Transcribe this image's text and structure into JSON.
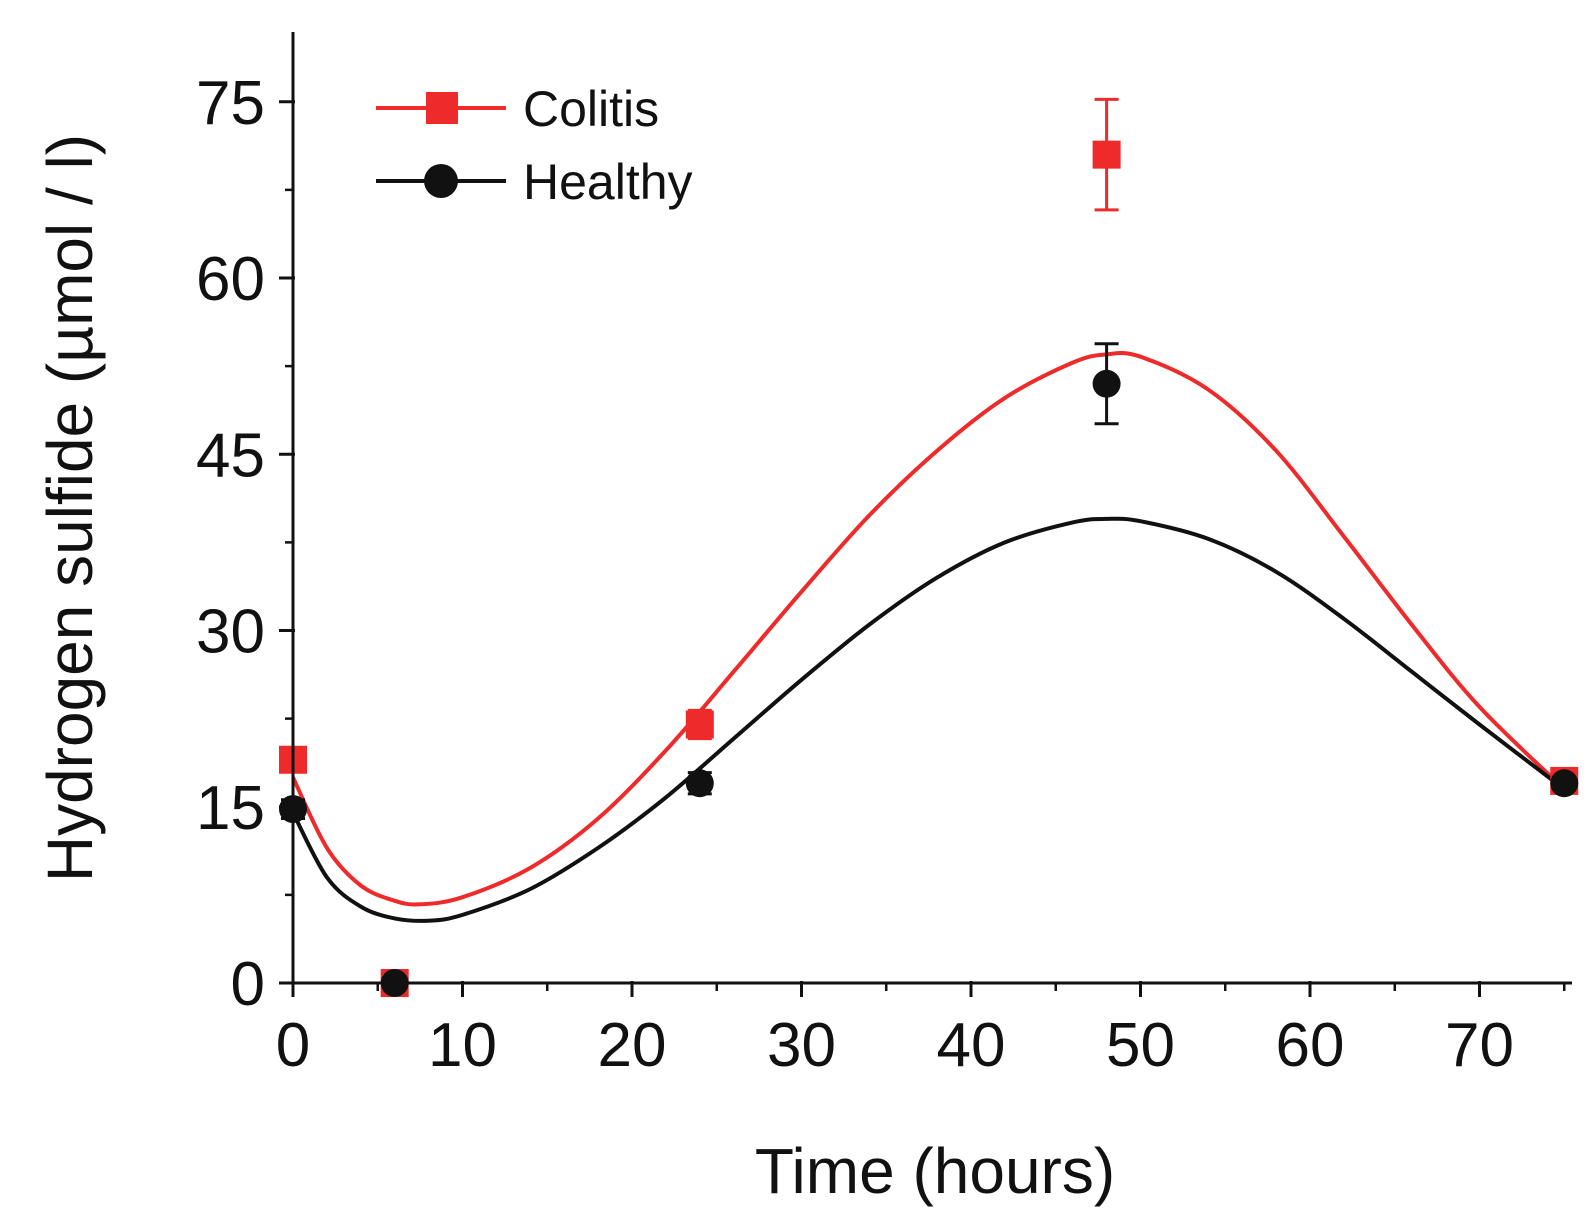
{
  "chart_data": {
    "type": "line",
    "title": "",
    "xlabel": "Time (hours)",
    "ylabel": "Hydrogen sulfide (µmol / l)",
    "xlim": [
      0,
      75
    ],
    "ylim": [
      0,
      78
    ],
    "xticks": [
      0,
      10,
      20,
      30,
      40,
      50,
      60,
      70
    ],
    "xtick_labels": [
      "0",
      "10",
      "20",
      "30",
      "40",
      "50",
      "60",
      "70"
    ],
    "yticks": [
      0,
      15,
      30,
      45,
      60,
      75
    ],
    "ytick_labels": [
      "0",
      "15",
      "30",
      "45",
      "60",
      "75"
    ],
    "grid": false,
    "legend_position": "top-left",
    "series": [
      {
        "name": "Colitis",
        "color": "#ee2a2a",
        "marker": "square",
        "x": [
          0,
          6,
          24,
          48,
          75
        ],
        "y": [
          19,
          0,
          22,
          70.5,
          17.2
        ],
        "err": [
          1,
          0,
          1.2,
          4.7,
          0.8
        ],
        "fit_x": [
          0,
          2,
          4,
          6,
          7.5,
          10,
          14,
          18,
          22,
          26,
          30,
          34,
          38,
          42,
          46,
          48,
          50,
          54,
          58,
          62,
          66,
          70,
          75
        ],
        "fit_y": [
          17.5,
          11.5,
          8.3,
          7.0,
          6.7,
          7.3,
          9.8,
          14.0,
          19.8,
          26.5,
          33.3,
          39.8,
          45.3,
          49.8,
          52.8,
          53.5,
          53.3,
          50.5,
          45.3,
          38.0,
          30.5,
          23.5,
          16.5
        ]
      },
      {
        "name": "Healthy",
        "color": "#111111",
        "marker": "circle",
        "x": [
          0,
          6,
          24,
          48,
          75
        ],
        "y": [
          14.8,
          0,
          17,
          51,
          17
        ],
        "err": [
          0.8,
          0,
          0.9,
          3.4,
          0.8
        ],
        "fit_x": [
          0,
          2,
          4,
          6,
          8,
          10,
          14,
          18,
          22,
          26,
          30,
          34,
          38,
          42,
          46,
          48,
          50,
          54,
          58,
          62,
          66,
          70,
          75
        ],
        "fit_y": [
          14.5,
          9.0,
          6.5,
          5.5,
          5.3,
          5.8,
          8.0,
          11.5,
          15.8,
          20.8,
          25.8,
          30.5,
          34.5,
          37.5,
          39.2,
          39.5,
          39.3,
          37.8,
          35.0,
          31.0,
          26.5,
          22.0,
          16.5
        ]
      }
    ]
  }
}
